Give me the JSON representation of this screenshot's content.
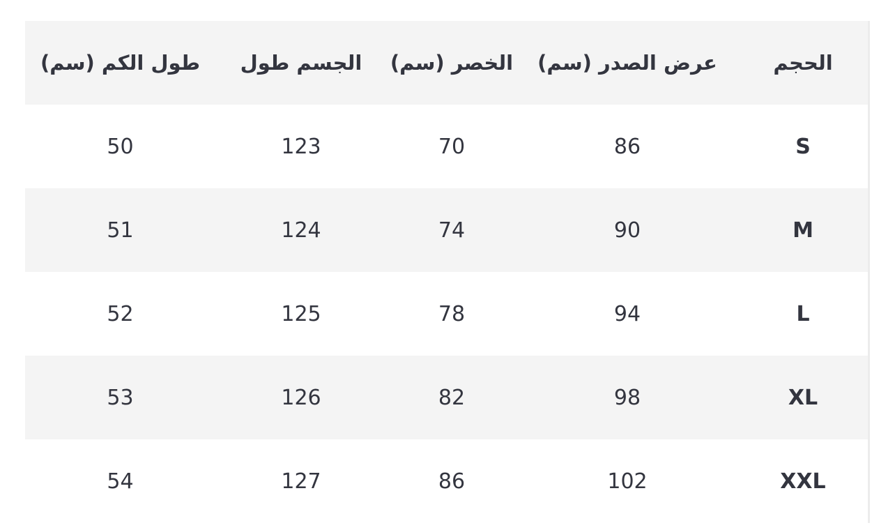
{
  "headers": [
    "الحجم",
    "عرض الصدر (سم)",
    "الخصر (سم)",
    "الجسم طول",
    "طول الكم (سم)"
  ],
  "rows": [
    {
      "size": "S",
      "chest": "86",
      "waist": "70",
      "length": "123",
      "sleeve": "50"
    },
    {
      "size": "M",
      "chest": "90",
      "waist": "74",
      "length": "124",
      "sleeve": "51"
    },
    {
      "size": "L",
      "chest": "94",
      "waist": "78",
      "length": "125",
      "sleeve": "52"
    },
    {
      "size": "XL",
      "chest": "98",
      "waist": "82",
      "length": "126",
      "sleeve": "53"
    },
    {
      "size": "XXL",
      "chest": "102",
      "waist": "86",
      "length": "127",
      "sleeve": "54"
    }
  ]
}
